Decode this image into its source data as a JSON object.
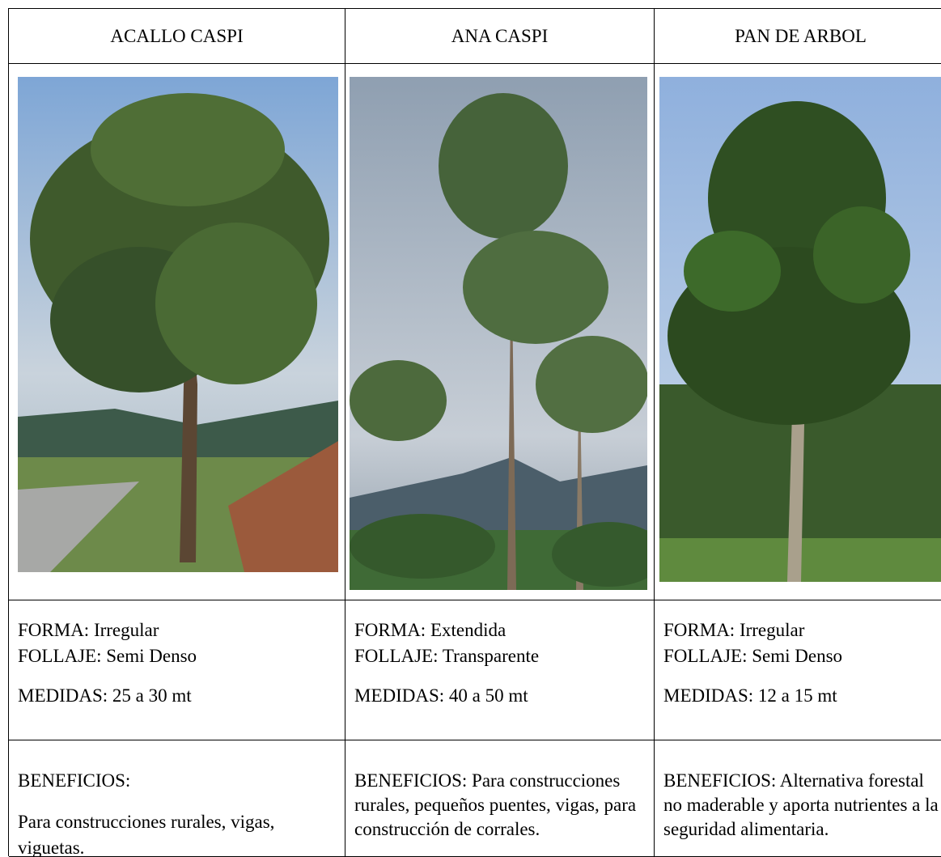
{
  "table": {
    "columns": [
      {
        "name": "ACALLO CASPI",
        "forma": "FORMA: Irregular",
        "follaje": "FOLLAJE: Semi Denso",
        "medidas": "MEDIDAS: 25 a 30 mt",
        "beneficios": [
          "BENEFICIOS:",
          "Para construcciones rurales, vigas, viguetas."
        ]
      },
      {
        "name": "ANA CASPI",
        "forma": "FORMA: Extendida",
        "follaje": "FOLLAJE: Transparente",
        "medidas": "MEDIDAS: 40 a 50 mt",
        "beneficios": [
          "BENEFICIOS: Para construcciones rurales, pequeños puentes, vigas, para construcción de corrales."
        ]
      },
      {
        "name": "PAN DE ARBOL",
        "forma": "FORMA:  Irregular",
        "follaje": "FOLLAJE: Semi Denso",
        "medidas": "MEDIDAS: 12 a 15 mt",
        "beneficios": [
          "BENEFICIOS: Alternativa forestal no maderable y aporta nutrientes a la seguridad alimentaria."
        ]
      }
    ]
  }
}
